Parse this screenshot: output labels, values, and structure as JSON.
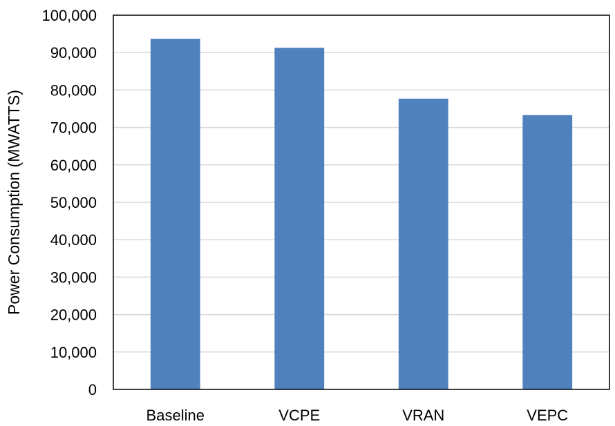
{
  "chart_data": {
    "type": "bar",
    "title": "",
    "xlabel": "",
    "ylabel": "Power Consumption (MWATTS)",
    "categories": [
      "Baseline",
      "VCPE",
      "VRAN",
      "VEPC"
    ],
    "values": [
      93700,
      91300,
      77700,
      73300
    ],
    "ylim": [
      0,
      100000
    ],
    "yticks": [
      0,
      10000,
      20000,
      30000,
      40000,
      50000,
      60000,
      70000,
      80000,
      90000,
      100000
    ],
    "ytick_labels": [
      "0",
      "10,000",
      "20,000",
      "30,000",
      "40,000",
      "50,000",
      "60,000",
      "70,000",
      "80,000",
      "90,000",
      "100,000"
    ],
    "grid": true,
    "legend": "none",
    "bar_color": "#4f81bd"
  }
}
